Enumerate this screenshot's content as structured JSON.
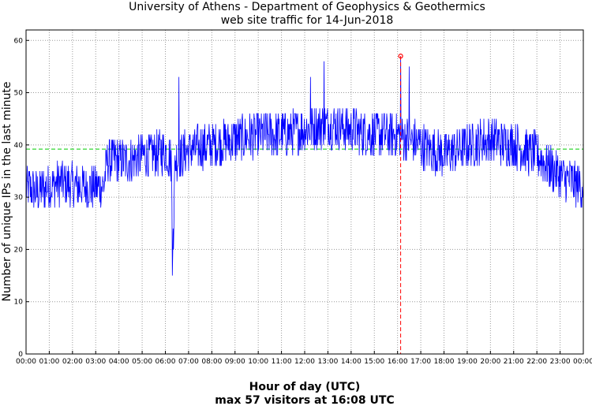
{
  "chart_data": {
    "type": "line",
    "title_line1": "University of Athens - Department of Geophysics & Geothermics",
    "title_line2": "web site traffic for 14-Jun-2018",
    "xlabel": "Hour of day (UTC)",
    "ylabel": "Number of unique IPs in the last minute",
    "annotation": "max 57 visitors at 16:08 UTC",
    "xlim_minutes": [
      0,
      1440
    ],
    "ylim": [
      0,
      62
    ],
    "x_ticks": [
      "00:00",
      "01:00",
      "02:00",
      "03:00",
      "04:00",
      "05:00",
      "06:00",
      "07:00",
      "08:00",
      "09:00",
      "10:00",
      "11:00",
      "12:00",
      "13:00",
      "14:00",
      "15:00",
      "16:00",
      "17:00",
      "18:00",
      "19:00",
      "20:00",
      "21:00",
      "22:00",
      "23:00",
      "00:00"
    ],
    "y_ticks": [
      0,
      10,
      20,
      30,
      40,
      50,
      60
    ],
    "grid": true,
    "mean_value": 39.2,
    "max_value": 57,
    "max_time_minutes": 968,
    "colors": {
      "series": "#0000ff",
      "mean": "#00cc00",
      "max": "#ff0000"
    },
    "series_profile": [
      {
        "x": 0,
        "y": 32
      },
      {
        "x": 30,
        "y": 31
      },
      {
        "x": 60,
        "y": 32
      },
      {
        "x": 90,
        "y": 33
      },
      {
        "x": 120,
        "y": 32
      },
      {
        "x": 150,
        "y": 32
      },
      {
        "x": 180,
        "y": 32
      },
      {
        "x": 200,
        "y": 32
      },
      {
        "x": 210,
        "y": 37
      },
      {
        "x": 240,
        "y": 37
      },
      {
        "x": 270,
        "y": 37
      },
      {
        "x": 300,
        "y": 38
      },
      {
        "x": 330,
        "y": 38
      },
      {
        "x": 360,
        "y": 39
      },
      {
        "x": 375,
        "y": 37
      },
      {
        "x": 380,
        "y": 20
      },
      {
        "x": 385,
        "y": 37
      },
      {
        "x": 420,
        "y": 39
      },
      {
        "x": 480,
        "y": 40
      },
      {
        "x": 540,
        "y": 41
      },
      {
        "x": 600,
        "y": 42
      },
      {
        "x": 660,
        "y": 42
      },
      {
        "x": 720,
        "y": 43
      },
      {
        "x": 780,
        "y": 44
      },
      {
        "x": 840,
        "y": 43
      },
      {
        "x": 900,
        "y": 42
      },
      {
        "x": 960,
        "y": 42
      },
      {
        "x": 1020,
        "y": 40
      },
      {
        "x": 1080,
        "y": 38
      },
      {
        "x": 1140,
        "y": 40
      },
      {
        "x": 1200,
        "y": 41
      },
      {
        "x": 1260,
        "y": 40
      },
      {
        "x": 1320,
        "y": 38
      },
      {
        "x": 1380,
        "y": 34
      },
      {
        "x": 1440,
        "y": 32
      }
    ],
    "noise_amplitude": 4.5,
    "spikes": [
      {
        "x": 378,
        "y": 15
      },
      {
        "x": 380,
        "y": 24
      },
      {
        "x": 395,
        "y": 53
      },
      {
        "x": 770,
        "y": 56
      },
      {
        "x": 735,
        "y": 53
      },
      {
        "x": 968,
        "y": 57
      },
      {
        "x": 990,
        "y": 55
      },
      {
        "x": 430,
        "y": 41
      }
    ]
  }
}
